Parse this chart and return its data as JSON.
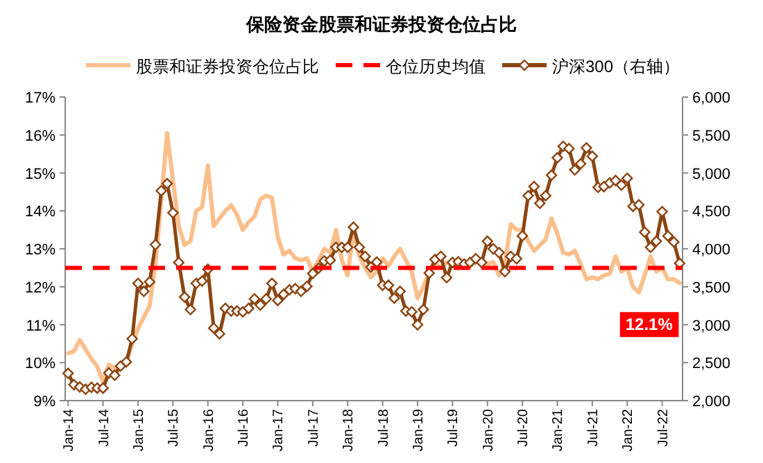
{
  "chart_data": {
    "type": "line",
    "title": "保险资金股票和证券投资仓位占比",
    "legend": "top",
    "categories": [
      "Jan-14",
      null,
      null,
      null,
      null,
      null,
      "Jul-14",
      null,
      null,
      null,
      null,
      null,
      "Jan-15",
      null,
      null,
      null,
      null,
      null,
      "Jul-15",
      null,
      null,
      null,
      null,
      null,
      "Jan-16",
      null,
      null,
      null,
      null,
      null,
      "Jul-16",
      null,
      null,
      null,
      null,
      null,
      "Jan-17",
      null,
      null,
      null,
      null,
      null,
      "Jul-17",
      null,
      null,
      null,
      null,
      null,
      "Jan-18",
      null,
      null,
      null,
      null,
      null,
      "Jul-18",
      null,
      null,
      null,
      null,
      null,
      "Jan-19",
      null,
      null,
      null,
      null,
      null,
      "Jul-19",
      null,
      null,
      null,
      null,
      null,
      "Jan-20",
      null,
      null,
      null,
      null,
      null,
      "Jul-20",
      null,
      null,
      null,
      null,
      null,
      "Jan-21",
      null,
      null,
      null,
      null,
      null,
      "Jul-21",
      null,
      null,
      null,
      null,
      null,
      "Jan-22",
      null,
      null,
      null,
      null,
      null,
      "Jul-22",
      null,
      null,
      null
    ],
    "series": [
      {
        "name": "股票和证券投资仓位占比",
        "color": "#fbbf8c",
        "marker": "none",
        "line_style": "solid",
        "values": [
          10.25,
          10.3,
          10.6,
          10.35,
          10.1,
          9.9,
          9.5,
          9.95,
          9.85,
          9.9,
          10.0,
          10.5,
          10.9,
          11.2,
          11.5,
          12.6,
          14.3,
          16.05,
          14.8,
          13.6,
          13.1,
          13.2,
          14.0,
          14.1,
          15.2,
          13.6,
          13.8,
          14.0,
          14.15,
          13.9,
          13.5,
          13.7,
          13.85,
          14.3,
          14.4,
          14.35,
          13.3,
          12.85,
          12.95,
          12.75,
          12.7,
          12.75,
          12.4,
          12.7,
          13.0,
          12.9,
          13.5,
          12.7,
          12.3,
          13.5,
          12.8,
          12.5,
          12.25,
          12.4,
          12.75,
          12.55,
          12.8,
          13.0,
          12.7,
          12.4,
          11.7,
          12.0,
          12.4,
          12.6,
          12.5,
          12.65,
          12.55,
          12.5,
          12.6,
          12.55,
          12.65,
          12.7,
          12.6,
          12.65,
          12.3,
          12.6,
          13.65,
          13.5,
          13.5,
          13.2,
          12.95,
          13.1,
          13.25,
          13.8,
          13.4,
          12.9,
          12.85,
          12.95,
          12.6,
          12.2,
          12.25,
          12.2,
          12.3,
          12.35,
          12.8,
          12.4,
          12.5,
          12.0,
          11.85,
          12.3,
          12.8,
          12.4,
          12.5,
          12.2,
          12.2,
          12.1
        ]
      },
      {
        "name": "沪深300（右轴）",
        "color": "#8b4513",
        "axis": "y2",
        "marker": "diamond",
        "line_style": "solid",
        "values": [
          2360,
          2210,
          2180,
          2150,
          2175,
          2165,
          2165,
          2365,
          2335,
          2455,
          2510,
          2815,
          3545,
          3440,
          3565,
          4055,
          4765,
          4860,
          4475,
          3820,
          3365,
          3200,
          3545,
          3575,
          3730,
          2955,
          2880,
          3215,
          3180,
          3180,
          3170,
          3215,
          3340,
          3260,
          3340,
          3545,
          3320,
          3400,
          3460,
          3475,
          3440,
          3505,
          3675,
          3745,
          3840,
          3850,
          4020,
          4020,
          4020,
          4285,
          4020,
          3900,
          3760,
          3825,
          3520,
          3520,
          3350,
          3440,
          3180,
          3170,
          3000,
          3200,
          3680,
          3860,
          3900,
          3620,
          3820,
          3830,
          3800,
          3820,
          3870,
          3820,
          4100,
          4000,
          3950,
          3700,
          3900,
          3870,
          4170,
          4700,
          4820,
          4600,
          4700,
          4970,
          5200,
          5350,
          5320,
          5040,
          5120,
          5330,
          5220,
          4810,
          4820,
          4870,
          4900,
          4840,
          4930,
          4560,
          4580,
          4220,
          4020,
          4100,
          4490,
          4170,
          4090,
          3810
        ]
      }
    ],
    "ref_lines": [
      {
        "axis": "y",
        "value": 12.5,
        "label": "仓位历史均值",
        "color": "#ff0000",
        "line_style": "dashed"
      }
    ],
    "annotations": [
      "12.1%"
    ],
    "ylim": [
      9,
      17
    ],
    "yticks": [
      {
        "value": 9,
        "label": "9%"
      },
      {
        "value": 10,
        "label": "10%"
      },
      {
        "value": 11,
        "label": "11%"
      },
      {
        "value": 12,
        "label": "12%"
      },
      {
        "value": 13,
        "label": "13%"
      },
      {
        "value": 14,
        "label": "14%"
      },
      {
        "value": 15,
        "label": "15%"
      },
      {
        "value": 16,
        "label": "16%"
      },
      {
        "value": 17,
        "label": "17%"
      }
    ],
    "y2lim": [
      2000,
      6000
    ],
    "y2ticks": [
      {
        "value": 2000,
        "label": "2,000"
      },
      {
        "value": 2500,
        "label": "2,500"
      },
      {
        "value": 3000,
        "label": "3,000"
      },
      {
        "value": 3500,
        "label": "3,500"
      },
      {
        "value": 4000,
        "label": "4,000"
      },
      {
        "value": 4500,
        "label": "4,500"
      },
      {
        "value": 5000,
        "label": "5,000"
      },
      {
        "value": 5500,
        "label": "5,500"
      },
      {
        "value": 6000,
        "label": "6,000"
      }
    ]
  }
}
